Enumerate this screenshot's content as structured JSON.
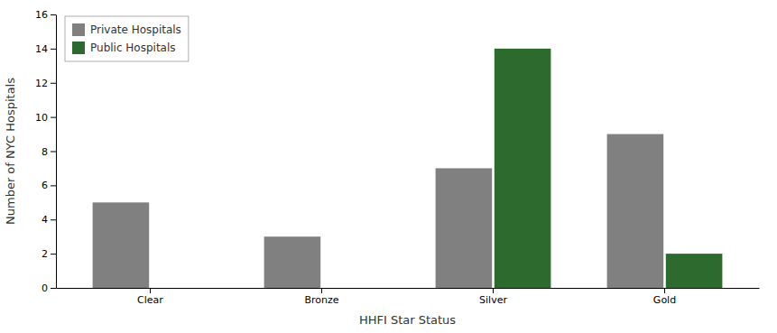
{
  "chart_data": {
    "type": "bar",
    "categories": [
      "Clear",
      "Bronze",
      "Silver",
      "Gold"
    ],
    "series": [
      {
        "name": "Private Hospitals",
        "color": "#808080",
        "values": [
          5,
          3,
          7,
          9
        ]
      },
      {
        "name": "Public Hospitals",
        "color": "#2d6a2d",
        "values": [
          0,
          0,
          14,
          2
        ]
      }
    ],
    "xlabel": "HHFI Star Status",
    "ylabel": "Number of NYC Hospitals",
    "ylim": [
      0,
      16
    ],
    "yticks": [
      0,
      2,
      4,
      6,
      8,
      10,
      12,
      14,
      16
    ],
    "legend": "upper left",
    "grid": false
  }
}
